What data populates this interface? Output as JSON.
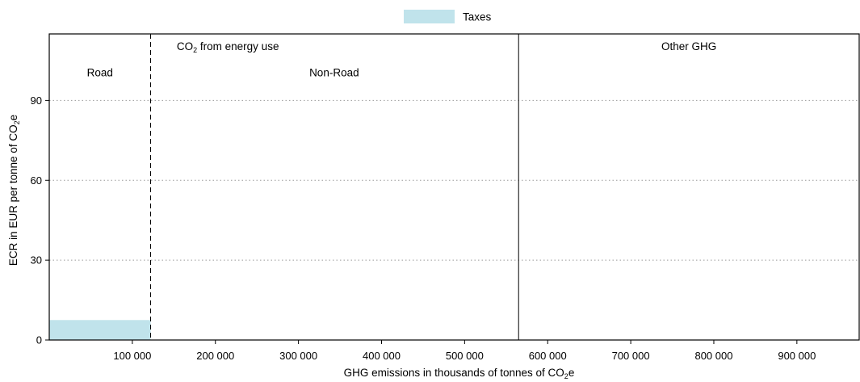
{
  "chart_data": {
    "type": "bar",
    "legend": {
      "placement": "top-center",
      "entries": [
        {
          "label": "Taxes",
          "color": "#c0e3eb"
        }
      ]
    },
    "xlabel": "GHG emissions in thousands of tonnes of CO₂e",
    "ylabel": "ECR in EUR per tonne of CO₂e",
    "xlim": [
      0,
      975000
    ],
    "ylim": [
      0,
      115
    ],
    "x_ticks": [
      100000,
      200000,
      300000,
      400000,
      500000,
      600000,
      700000,
      800000,
      900000
    ],
    "x_tick_labels": [
      "100 000",
      "200 000",
      "300 000",
      "400 000",
      "500 000",
      "600 000",
      "700 000",
      "800 000",
      "900 000"
    ],
    "y_ticks": [
      0,
      30,
      60,
      90
    ],
    "y_tick_labels": [
      "0",
      "30",
      "60",
      "90"
    ],
    "grid": {
      "horizontal": true,
      "style": "dotted"
    },
    "bars": [
      {
        "series": "Taxes",
        "x_start": 0,
        "x_end": 122000,
        "value": 7.5,
        "color": "#c0e3eb"
      }
    ],
    "dividers": [
      {
        "x": 122000,
        "style": "dashed"
      },
      {
        "x": 565000,
        "style": "solid"
      }
    ],
    "section_headers": [
      {
        "label": "CO₂ from energy use",
        "x_center": 215000,
        "y": 109
      },
      {
        "label": "Other GHG",
        "x_center": 770000,
        "y": 109
      }
    ],
    "subsection_labels": [
      {
        "label": "Road",
        "x_center": 61000,
        "y": 99
      },
      {
        "label": "Non-Road",
        "x_center": 343000,
        "y": 99
      }
    ]
  }
}
